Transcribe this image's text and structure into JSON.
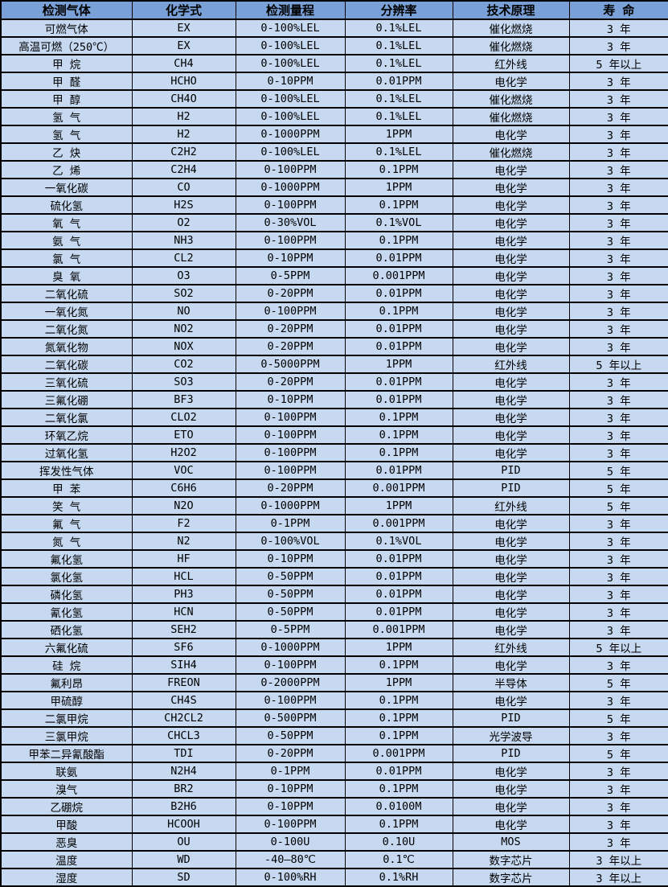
{
  "colors": {
    "header_bg": "#79a1d7",
    "row_bg": "#c6d9f1",
    "border": "#000000",
    "text": "#000000"
  },
  "table": {
    "column_keys": [
      "gas",
      "formula",
      "range",
      "resolution",
      "principle",
      "life"
    ],
    "columns": [
      "检测气体",
      "化学式",
      "检测量程",
      "分辨率",
      "技术原理",
      "寿 命"
    ],
    "rows": [
      [
        "可燃气体",
        "EX",
        "0-100%LEL",
        "0.1%LEL",
        "催化燃烧",
        "3 年"
      ],
      [
        "高温可燃（250℃）",
        "EX",
        "0-100%LEL",
        "0.1%LEL",
        "催化燃烧",
        "3 年"
      ],
      [
        "甲 烷",
        "CH4",
        "0-100%LEL",
        "0.1%LEL",
        "红外线",
        "5 年以上"
      ],
      [
        "甲 醛",
        "HCHO",
        "0-10PPM",
        "0.01PPM",
        "电化学",
        "3 年"
      ],
      [
        "甲 醇",
        "CH4O",
        "0-100%LEL",
        "0.1%LEL",
        "催化燃烧",
        "3 年"
      ],
      [
        "氢 气",
        "H2",
        "0-100%LEL",
        "0.1%LEL",
        "催化燃烧",
        "3 年"
      ],
      [
        "氢 气",
        "H2",
        "0-1000PPM",
        "1PPM",
        "电化学",
        "3 年"
      ],
      [
        "乙 炔",
        "C2H2",
        "0-100%LEL",
        "0.1%LEL",
        "催化燃烧",
        "3 年"
      ],
      [
        "乙 烯",
        "C2H4",
        "0-100PPM",
        "0.1PPM",
        "电化学",
        "3 年"
      ],
      [
        "一氧化碳",
        "CO",
        "0-1000PPM",
        "1PPM",
        "电化学",
        "3 年"
      ],
      [
        "硫化氢",
        "H2S",
        "0-100PPM",
        "0.1PPM",
        "电化学",
        "3 年"
      ],
      [
        "氧 气",
        "O2",
        "0-30%VOL",
        "0.1%VOL",
        "电化学",
        "3 年"
      ],
      [
        "氨 气",
        "NH3",
        "0-100PPM",
        "0.1PPM",
        "电化学",
        "3 年"
      ],
      [
        "氯 气",
        "CL2",
        "0-10PPM",
        "0.01PPM",
        "电化学",
        "3 年"
      ],
      [
        "臭 氧",
        "O3",
        "0-5PPM",
        "0.001PPM",
        "电化学",
        "3 年"
      ],
      [
        "二氧化硫",
        "SO2",
        "0-20PPM",
        "0.01PPM",
        "电化学",
        "3 年"
      ],
      [
        "一氧化氮",
        "NO",
        "0-100PPM",
        "0.1PPM",
        "电化学",
        "3 年"
      ],
      [
        "二氧化氮",
        "NO2",
        "0-20PPM",
        "0.01PPM",
        "电化学",
        "3 年"
      ],
      [
        "氮氧化物",
        "NOX",
        "0-20PPM",
        "0.01PPM",
        "电化学",
        "3 年"
      ],
      [
        "二氧化碳",
        "CO2",
        "0-5000PPM",
        "1PPM",
        "红外线",
        "5 年以上"
      ],
      [
        "三氧化硫",
        "SO3",
        "0-20PPM",
        "0.01PPM",
        "电化学",
        "3 年"
      ],
      [
        "三氟化硼",
        "BF3",
        "0-10PPM",
        "0.01PPM",
        "电化学",
        "3 年"
      ],
      [
        "二氧化氯",
        "CLO2",
        "0-100PPM",
        "0.1PPM",
        "电化学",
        "3 年"
      ],
      [
        "环氧乙烷",
        "ETO",
        "0-100PPM",
        "0.1PPM",
        "电化学",
        "3 年"
      ],
      [
        "过氧化氢",
        "H2O2",
        "0-100PPM",
        "0.1PPM",
        "电化学",
        "3 年"
      ],
      [
        "挥发性气体",
        "VOC",
        "0-100PPM",
        "0.01PPM",
        "PID",
        "5 年"
      ],
      [
        "甲 苯",
        "C6H6",
        "0-20PPM",
        "0.001PPM",
        "PID",
        "5 年"
      ],
      [
        "笑 气",
        "N2O",
        "0-1000PPM",
        "1PPM",
        "红外线",
        "5 年"
      ],
      [
        "氟 气",
        "F2",
        "0-1PPM",
        "0.001PPM",
        "电化学",
        "3 年"
      ],
      [
        "氮 气",
        "N2",
        "0-100%VOL",
        "0.1%VOL",
        "电化学",
        "3 年"
      ],
      [
        "氟化氢",
        "HF",
        "0-10PPM",
        "0.01PPM",
        "电化学",
        "3 年"
      ],
      [
        "氯化氢",
        "HCL",
        "0-50PPM",
        "0.01PPM",
        "电化学",
        "3 年"
      ],
      [
        "磷化氢",
        "PH3",
        "0-50PPM",
        "0.01PPM",
        "电化学",
        "3 年"
      ],
      [
        "氰化氢",
        "HCN",
        "0-50PPM",
        "0.01PPM",
        "电化学",
        "3 年"
      ],
      [
        "硒化氢",
        "SEH2",
        "0-5PPM",
        "0.001PPM",
        "电化学",
        "3 年"
      ],
      [
        "六氟化硫",
        "SF6",
        "0-1000PPM",
        "1PPM",
        "红外线",
        "5 年以上"
      ],
      [
        "硅 烷",
        "SIH4",
        "0-100PPM",
        "0.1PPM",
        "电化学",
        "3 年"
      ],
      [
        "氟利昂",
        "FREON",
        "0-2000PPM",
        "1PPM",
        "半导体",
        "5 年"
      ],
      [
        "甲硫醇",
        "CH4S",
        "0-100PPM",
        "0.1PPM",
        "电化学",
        "3 年"
      ],
      [
        "二氯甲烷",
        "CH2CL2",
        "0-500PPM",
        "0.1PPM",
        "PID",
        "5 年"
      ],
      [
        "三氯甲烷",
        "CHCL3",
        "0-50PPM",
        "0.1PPM",
        "光学波导",
        "3 年"
      ],
      [
        "甲苯二异氰酸酯",
        "TDI",
        "0-20PPM",
        "0.001PPM",
        "PID",
        "5 年"
      ],
      [
        "联氨",
        "N2H4",
        "0-1PPM",
        "0.01PPM",
        "电化学",
        "3 年"
      ],
      [
        "溴气",
        "BR2",
        "0-10PPM",
        "0.1PPM",
        "电化学",
        "3 年"
      ],
      [
        "乙硼烷",
        "B2H6",
        "0-10PPM",
        "0.0100M",
        "电化学",
        "3 年"
      ],
      [
        "甲酸",
        "HCOOH",
        "0-100PPM",
        "0.1PPM",
        "电化学",
        "3 年"
      ],
      [
        "恶臭",
        "OU",
        "0-100U",
        "0.10U",
        "MOS",
        "3 年"
      ],
      [
        "温度",
        "WD",
        "-40—80℃",
        "0.1℃",
        "数字芯片",
        "3 年以上"
      ],
      [
        "湿度",
        "SD",
        "0-100%RH",
        "0.1%RH",
        "数字芯片",
        "3 年以上"
      ]
    ]
  }
}
